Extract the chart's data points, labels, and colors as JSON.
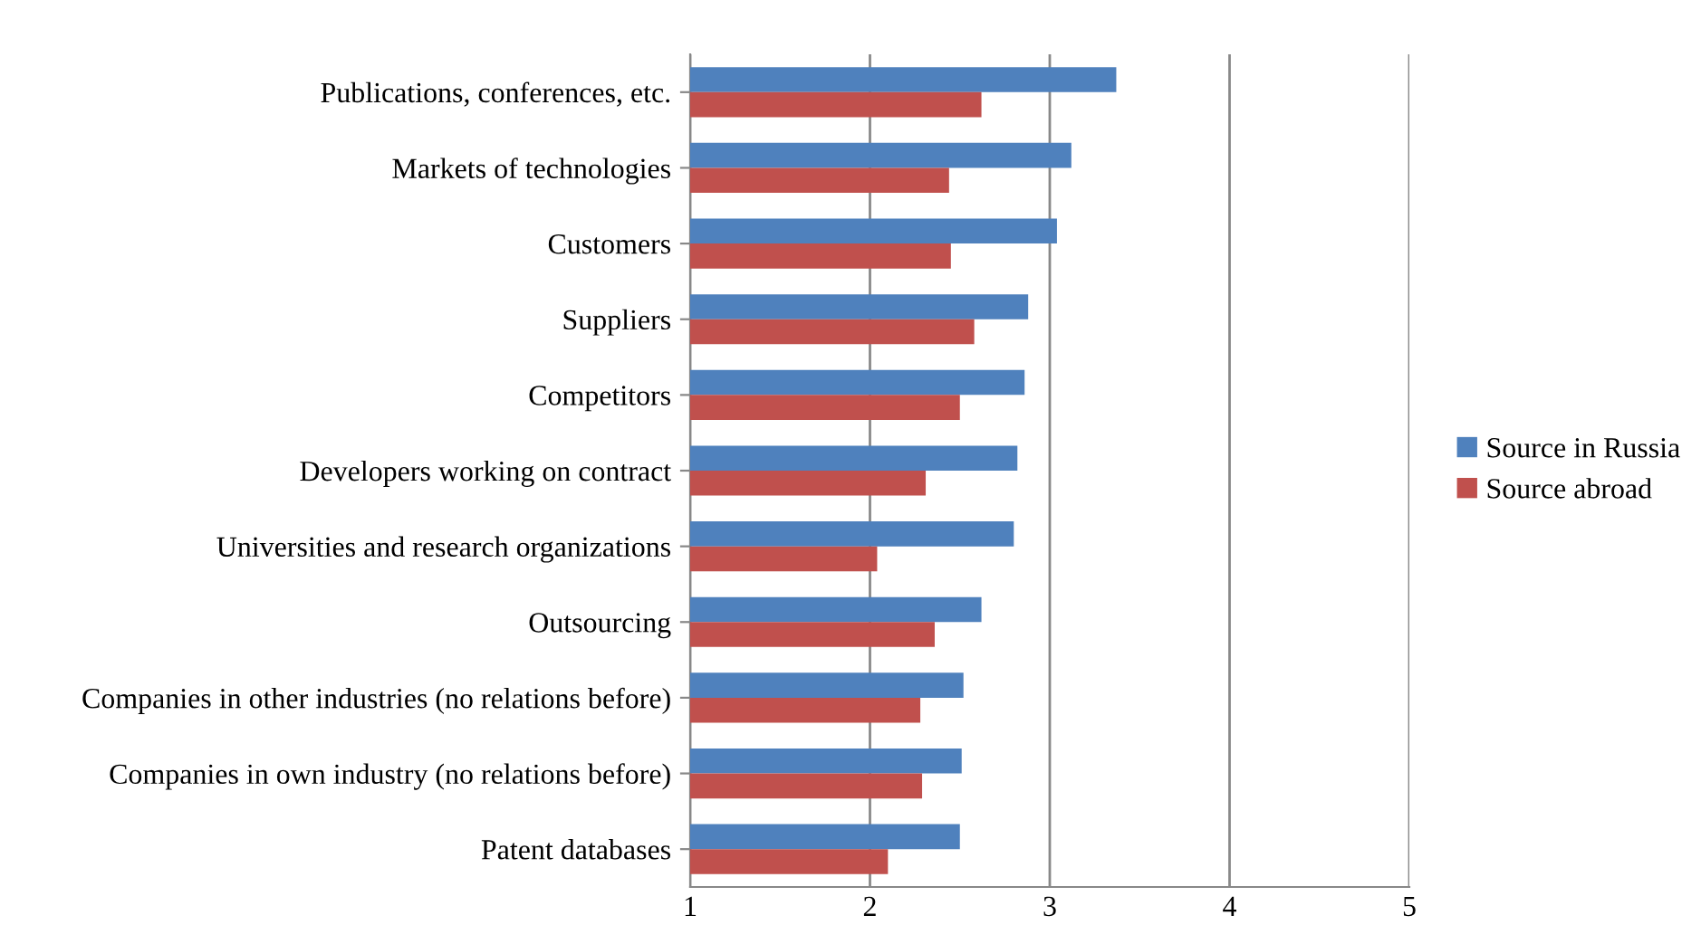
{
  "chart_data": {
    "type": "bar",
    "orientation": "horizontal",
    "categories": [
      "Publications, conferences, etc.",
      "Markets of technologies",
      "Customers",
      "Suppliers",
      "Competitors",
      "Developers working on contract",
      "Universities and research organizations",
      "Outsourcing",
      "Companies in other industries (no relations before)",
      "Companies in own industry (no relations before)",
      "Patent databases"
    ],
    "series": [
      {
        "name": "Source in Russia",
        "color": "#4f81bd",
        "values": [
          3.37,
          3.12,
          3.04,
          2.88,
          2.86,
          2.82,
          2.8,
          2.62,
          2.52,
          2.51,
          2.5
        ]
      },
      {
        "name": "Source abroad",
        "color": "#c0504d",
        "values": [
          2.62,
          2.44,
          2.45,
          2.58,
          2.5,
          2.31,
          2.04,
          2.36,
          2.28,
          2.29,
          2.1
        ]
      }
    ],
    "xlim": [
      1,
      5
    ],
    "xticks": [
      1,
      2,
      3,
      4,
      5
    ],
    "grid": "x",
    "legend": "right"
  }
}
